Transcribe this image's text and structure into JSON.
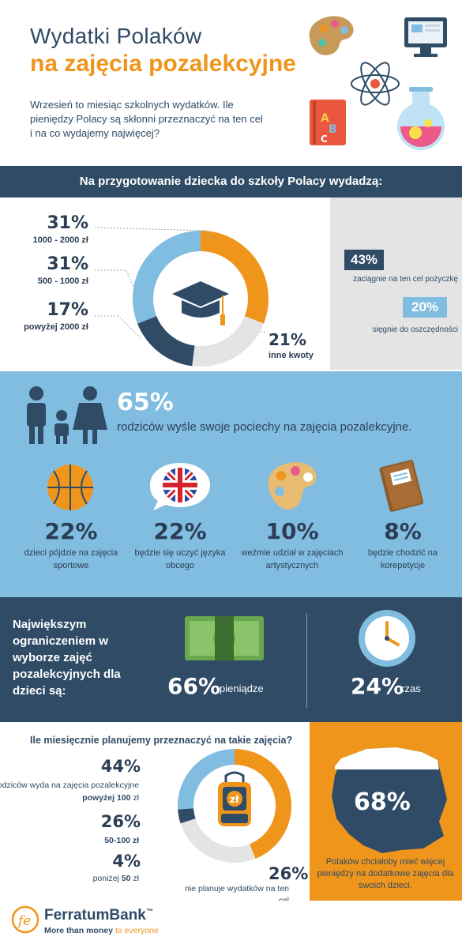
{
  "header": {
    "title_line1": "Wydatki Polaków",
    "title_line2": "na zajęcia pozalekcyjne",
    "intro": "Wrzesień to miesiąc szkolnych wydatków. Ile pieniędzy Polacy są skłonni przeznaczyć na ten cel i na co wydajemy najwięcej?"
  },
  "section1": {
    "banner": "Na przygotowanie dziecka do szkoły Polacy wydadzą:",
    "items": [
      {
        "pct": "31%",
        "label": "1000 - 2000 zł",
        "value": 31
      },
      {
        "pct": "31%",
        "label": "500 - 1000 zł",
        "value": 31
      },
      {
        "pct": "17%",
        "label": "powyżej 2000 zł",
        "value": 17
      },
      {
        "pct": "21%",
        "label": "inne kwoty",
        "value": 21
      }
    ],
    "colors": [
      "#f0951c",
      "#81bde0",
      "#2f4b66",
      "#e4e4e4"
    ],
    "loans": [
      {
        "pct": "43%",
        "label": "zaciągnie na ten cel pożyczkę"
      },
      {
        "pct": "20%",
        "label": "sięgnie do oszczędności"
      }
    ]
  },
  "section2": {
    "pct": "65%",
    "text": "rodziców wyśle swoje pociechy na zajęcia pozalekcyjne.",
    "activities": [
      {
        "icon": "basketball-icon",
        "pct": "22%",
        "label": "dzieci pójdzie na zajęcia sportowe"
      },
      {
        "icon": "uk-flag-speech-icon",
        "pct": "22%",
        "label": "będzie się uczyć języka obcego"
      },
      {
        "icon": "palette-icon",
        "pct": "10%",
        "label": "weźmie udział w zajęciach artystycznych"
      },
      {
        "icon": "book-icon",
        "pct": "8%",
        "label": "będzie chodzić na korepetycje"
      }
    ]
  },
  "section3": {
    "text": "Największym ograniczeniem w wyborze zajęć pozalekcyjnych dla dzieci są:",
    "money_pct": "66%",
    "money_label": "pieniądze",
    "time_pct": "24%",
    "time_label": "czas"
  },
  "section4": {
    "question": "Ile miesięcznie planujemy przeznaczyć na takie zajęcia?",
    "items": [
      {
        "pct": "44%",
        "label": "rodziców wyda na zajęcia pozalekcyjne",
        "label_bold": "powyżej 100",
        "label_tail": "zł",
        "value": 44
      },
      {
        "pct": "26%",
        "label": "50-100 zł",
        "value": 26
      },
      {
        "pct": "4%",
        "label": "poniżej",
        "label_bold": "50",
        "label_tail": "zł",
        "value": 4
      },
      {
        "pct": "26%",
        "label": "nie planuje wydatków na ten cel",
        "value": 26
      }
    ],
    "colors": [
      "#f0951c",
      "#81bde0",
      "#2f4b66",
      "#e4e4e4"
    ],
    "poland_pct": "68%",
    "poland_text": "Polaków chciałoby mieć więcej pieniędzy na dodatkowe zajęcia dla swoich dzieci."
  },
  "footer": {
    "brand_a": "Ferratum",
    "brand_b": "Bank",
    "tm": "™",
    "tagline_a": "More than money",
    "tagline_b": "to everyone"
  }
}
